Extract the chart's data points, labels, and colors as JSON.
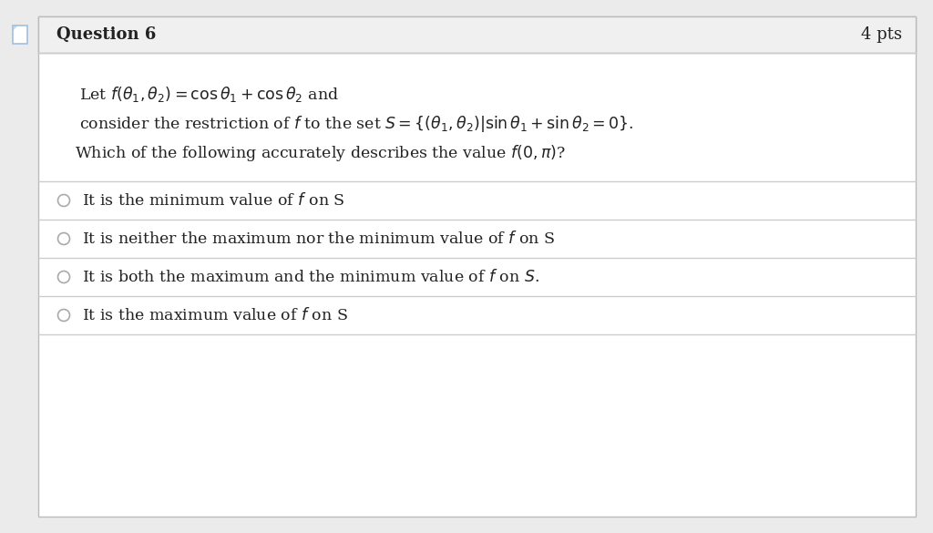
{
  "background_color": "#ebebeb",
  "card_bg": "#ffffff",
  "header_bg": "#f0f0f0",
  "header_text": "Question 6",
  "header_pts": "4 pts",
  "header_font_size": 13,
  "body_font_size": 12.5,
  "option_font_size": 12.5,
  "line1": "Let $f(\\theta_1, \\theta_2) = \\cos \\theta_1 + \\cos \\theta_2$ and",
  "line2": "consider the restriction of $f$ to the set $S = \\{(\\theta_1, \\theta_2)|\\sin \\theta_1 + \\sin \\theta_2 = 0\\}$.",
  "line3": "Which of the following accurately describes the value $f(0, \\pi)$?",
  "options": [
    "It is the minimum value of $f$ on S",
    "It is neither the maximum nor the minimum value of $f$ on S",
    "It is both the maximum and the minimum value of $f$ on $S$.",
    "It is the maximum value of $f$ on S"
  ],
  "text_color": "#222222",
  "divider_color": "#cccccc",
  "border_color": "#bbbbbb",
  "radio_color": "#aaaaaa",
  "icon_color": "#a8c4e0"
}
